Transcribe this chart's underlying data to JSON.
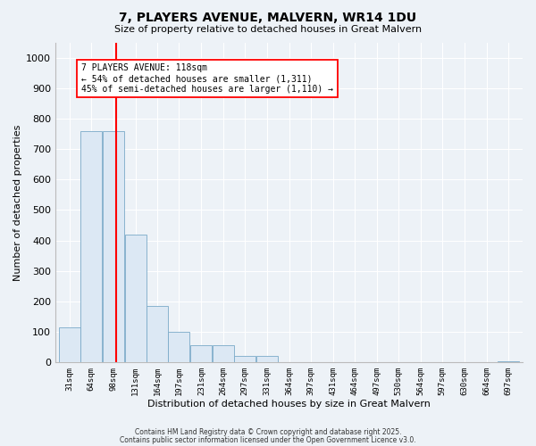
{
  "title1": "7, PLAYERS AVENUE, MALVERN, WR14 1DU",
  "title2": "Size of property relative to detached houses in Great Malvern",
  "xlabel": "Distribution of detached houses by size in Great Malvern",
  "ylabel": "Number of detached properties",
  "bar_color": "#dce8f4",
  "bar_edge_color": "#7aaac8",
  "red_line_x": 118,
  "annotation_text": "7 PLAYERS AVENUE: 118sqm\n← 54% of detached houses are smaller (1,311)\n45% of semi-detached houses are larger (1,110) →",
  "footer1": "Contains HM Land Registry data © Crown copyright and database right 2025.",
  "footer2": "Contains public sector information licensed under the Open Government Licence v3.0.",
  "bin_starts": [
    31,
    64,
    98,
    131,
    164,
    197,
    231,
    264,
    297,
    331,
    364,
    397,
    431,
    464,
    497,
    530,
    564,
    597,
    630,
    664,
    697
  ],
  "counts": [
    115,
    760,
    760,
    420,
    185,
    100,
    55,
    55,
    20,
    20,
    0,
    0,
    0,
    0,
    0,
    0,
    0,
    0,
    0,
    0,
    5
  ],
  "bin_width": 33,
  "ylim": [
    0,
    1050
  ],
  "yticks": [
    0,
    100,
    200,
    300,
    400,
    500,
    600,
    700,
    800,
    900,
    1000
  ],
  "bg_color": "#edf2f7",
  "grid_color": "#ffffff"
}
